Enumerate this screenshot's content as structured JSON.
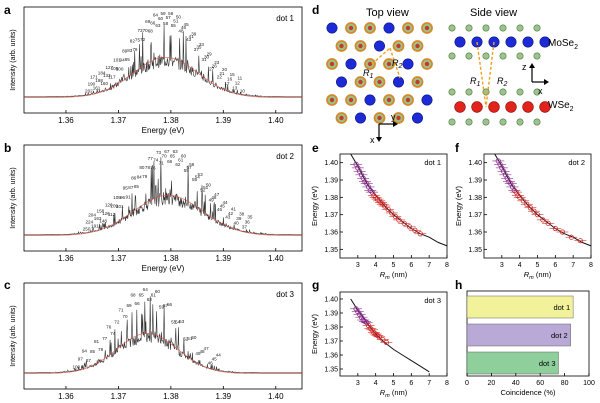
{
  "panel_labels": [
    "a",
    "b",
    "c",
    "d",
    "e",
    "f",
    "g",
    "h"
  ],
  "spectra": {
    "xlabel": "Energy (eV)",
    "ylabel": "Intensity (arb. units)",
    "xticks": [
      "1.36",
      "1.37",
      "1.38",
      "1.39",
      "1.40"
    ],
    "panels": [
      {
        "label": "dot 1",
        "peak_labels": [
          "202",
          "190",
          "171",
          "161",
          "198",
          "184",
          "160",
          "133",
          "127",
          "117",
          "106",
          "101",
          "100",
          "94",
          "89",
          "85",
          "83",
          "82",
          "79",
          "75",
          "73",
          "72",
          "70",
          "69",
          "68",
          "66",
          "64",
          "63",
          "60",
          "59",
          "58",
          "57",
          "56",
          "55",
          "51",
          "50",
          "48",
          "46",
          "45",
          "43",
          "41",
          "39",
          "37",
          "35",
          "33",
          "31",
          "30",
          "29",
          "27",
          "26",
          "23",
          "22",
          "21",
          "20",
          "17",
          "16",
          "15",
          "13",
          "12",
          "11",
          "10"
        ]
      },
      {
        "label": "dot 2",
        "peak_labels": [
          "250",
          "224",
          "204",
          "191",
          "163",
          "158",
          "148",
          "126",
          "120",
          "112",
          "109",
          "105",
          "101",
          "96",
          "95",
          "91",
          "87",
          "86",
          "85",
          "84",
          "80",
          "79",
          "78",
          "77",
          "76",
          "74",
          "73",
          "71",
          "70",
          "67",
          "66",
          "65",
          "63",
          "62",
          "61",
          "60",
          "59",
          "57",
          "56",
          "55",
          "54",
          "53",
          "52",
          "51",
          "50",
          "49",
          "48",
          "47",
          "46",
          "45",
          "44",
          "43",
          "42",
          "41",
          "40",
          "39",
          "38",
          "37",
          "36",
          "35"
        ]
      },
      {
        "label": "dot 3",
        "peak_labels": [
          "100",
          "97",
          "94",
          "87",
          "85",
          "81",
          "78",
          "77",
          "76",
          "74",
          "72",
          "71",
          "70",
          "69",
          "68",
          "66",
          "65",
          "64",
          "63",
          "61",
          "60",
          "59",
          "57",
          "56",
          "55",
          "54",
          "53",
          "52",
          "51",
          "50",
          "49",
          "48",
          "47",
          "46",
          "45",
          "44"
        ]
      }
    ]
  },
  "diagram": {
    "top_view": "Top view",
    "side_view": "Side view",
    "layer_top": "MoSe",
    "layer_bottom": "WSe",
    "sub": "2",
    "r1": "R",
    "r2": "R",
    "r1_sub": "1",
    "r2_sub": "2",
    "axis_x": "x",
    "axis_y": "y",
    "axis_z": "z"
  },
  "chart_data": [
    {
      "type": "scatter",
      "panel": "e",
      "title": "dot 1",
      "xlabel": "R_m (nm)",
      "ylabel": "Energy (eV)",
      "xlim": [
        2,
        8
      ],
      "ylim": [
        1.345,
        1.405
      ],
      "xticks": [
        "3",
        "4",
        "5",
        "6",
        "7",
        "8"
      ],
      "yticks": [
        "1.35",
        "1.36",
        "1.37",
        "1.38",
        "1.39",
        "1.40"
      ],
      "fit": [
        [
          2.6,
          1.405
        ],
        [
          3,
          1.398
        ],
        [
          3.5,
          1.388
        ],
        [
          4,
          1.381
        ],
        [
          4.5,
          1.375
        ],
        [
          5,
          1.37
        ],
        [
          5.5,
          1.366
        ],
        [
          6,
          1.362
        ],
        [
          6.5,
          1.359
        ],
        [
          7,
          1.357
        ],
        [
          7.5,
          1.354
        ],
        [
          8,
          1.352
        ]
      ],
      "points": [
        [
          2.9,
          1.399
        ],
        [
          3.0,
          1.397
        ],
        [
          3.1,
          1.395
        ],
        [
          3.2,
          1.393
        ],
        [
          3.3,
          1.391
        ],
        [
          3.4,
          1.389
        ],
        [
          3.5,
          1.388
        ],
        [
          3.6,
          1.386
        ],
        [
          3.7,
          1.384
        ],
        [
          3.8,
          1.383
        ],
        [
          3.9,
          1.381
        ],
        [
          4.0,
          1.38
        ],
        [
          4.1,
          1.379
        ],
        [
          4.2,
          1.378
        ],
        [
          4.3,
          1.377
        ],
        [
          4.4,
          1.376
        ],
        [
          4.5,
          1.375
        ],
        [
          4.7,
          1.373
        ],
        [
          4.9,
          1.371
        ],
        [
          5.1,
          1.369
        ],
        [
          5.3,
          1.367
        ],
        [
          5.6,
          1.365
        ],
        [
          5.9,
          1.363
        ],
        [
          6.2,
          1.361
        ],
        [
          6.5,
          1.359
        ]
      ]
    },
    {
      "type": "scatter",
      "panel": "f",
      "title": "dot 2",
      "xlabel": "R_m (nm)",
      "ylabel": "Energy (eV)",
      "xlim": [
        2,
        8
      ],
      "ylim": [
        1.345,
        1.405
      ],
      "xticks": [
        "3",
        "4",
        "5",
        "6",
        "7",
        "8"
      ],
      "yticks": [
        "1.35",
        "1.36",
        "1.37",
        "1.38",
        "1.39",
        "1.40"
      ],
      "fit": [
        [
          2.6,
          1.405
        ],
        [
          3,
          1.398
        ],
        [
          3.5,
          1.388
        ],
        [
          4,
          1.381
        ],
        [
          4.5,
          1.375
        ],
        [
          5,
          1.37
        ],
        [
          5.5,
          1.366
        ],
        [
          6,
          1.362
        ],
        [
          6.5,
          1.359
        ],
        [
          7,
          1.357
        ],
        [
          7.5,
          1.354
        ],
        [
          8,
          1.352
        ]
      ],
      "points": [
        [
          2.8,
          1.401
        ],
        [
          2.9,
          1.399
        ],
        [
          3.0,
          1.397
        ],
        [
          3.1,
          1.395
        ],
        [
          3.2,
          1.393
        ],
        [
          3.3,
          1.391
        ],
        [
          3.4,
          1.389
        ],
        [
          3.5,
          1.388
        ],
        [
          3.6,
          1.386
        ],
        [
          3.7,
          1.384
        ],
        [
          3.8,
          1.383
        ],
        [
          3.9,
          1.381
        ],
        [
          4.0,
          1.38
        ],
        [
          4.2,
          1.378
        ],
        [
          4.4,
          1.376
        ],
        [
          4.6,
          1.374
        ],
        [
          4.8,
          1.372
        ],
        [
          5.0,
          1.37
        ],
        [
          5.3,
          1.367
        ],
        [
          5.6,
          1.365
        ],
        [
          6.0,
          1.362
        ],
        [
          6.4,
          1.36
        ],
        [
          6.9,
          1.357
        ],
        [
          7.4,
          1.355
        ]
      ]
    },
    {
      "type": "scatter",
      "panel": "g",
      "title": "dot 3",
      "xlabel": "R_m (nm)",
      "ylabel": "Energy (eV)",
      "xlim": [
        2,
        8
      ],
      "ylim": [
        1.345,
        1.405
      ],
      "xticks": [
        "3",
        "4",
        "5",
        "6",
        "7",
        "8"
      ],
      "yticks": [
        "1.35",
        "1.36",
        "1.37",
        "1.38",
        "1.39",
        "1.40"
      ],
      "fit": [
        [
          2.6,
          1.4
        ],
        [
          3,
          1.392
        ],
        [
          3.5,
          1.383
        ],
        [
          4,
          1.375
        ],
        [
          4.5,
          1.369
        ],
        [
          5,
          1.364
        ],
        [
          5.5,
          1.36
        ],
        [
          6,
          1.356
        ],
        [
          6.5,
          1.352
        ],
        [
          7,
          1.348
        ]
      ],
      "points": [
        [
          2.9,
          1.393
        ],
        [
          3.0,
          1.391
        ],
        [
          3.1,
          1.389
        ],
        [
          3.2,
          1.387
        ],
        [
          3.3,
          1.385
        ],
        [
          3.4,
          1.384
        ],
        [
          3.5,
          1.383
        ],
        [
          3.6,
          1.381
        ],
        [
          3.7,
          1.379
        ],
        [
          3.8,
          1.378
        ],
        [
          3.9,
          1.376
        ],
        [
          4.0,
          1.375
        ],
        [
          4.1,
          1.374
        ],
        [
          4.2,
          1.373
        ],
        [
          4.4,
          1.371
        ],
        [
          4.6,
          1.369
        ]
      ]
    },
    {
      "type": "bar",
      "panel": "h",
      "orientation": "horizontal",
      "xlabel": "Coincidence (%)",
      "xlim": [
        0,
        100
      ],
      "xticks": [
        "0",
        "20",
        "40",
        "60",
        "80",
        "100"
      ],
      "categories": [
        "dot 1",
        "dot 2",
        "dot 3"
      ],
      "values": [
        87,
        85,
        75
      ],
      "colors": [
        "#f2f29a",
        "#b8a9d6",
        "#8fcf9c"
      ]
    }
  ]
}
